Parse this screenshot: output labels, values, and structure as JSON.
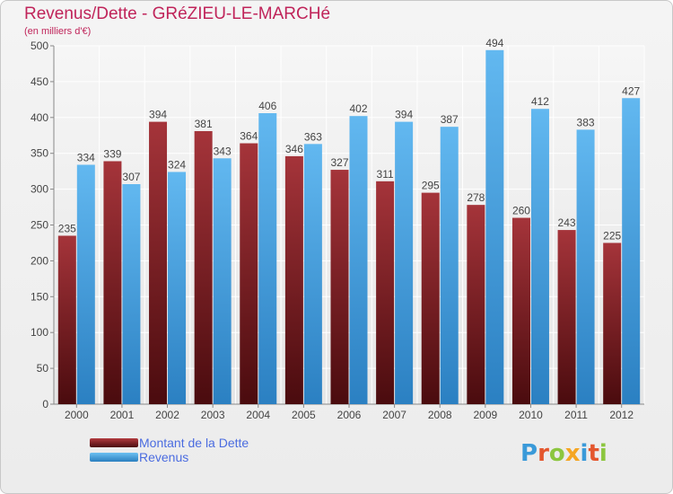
{
  "header": {
    "title": "Revenus/Dette - GRéZIEU-LE-MARCHé",
    "subtitle": "(en milliers d'€)"
  },
  "legend": {
    "items": [
      {
        "label": "Montant de la Dette",
        "color": "#7a1f22"
      },
      {
        "label": "Revenus",
        "color": "#3a9ad9"
      }
    ]
  },
  "logo": {
    "text": "Proxiti",
    "brand_colors": [
      "#3a9ad9",
      "#e4572e",
      "#8cc63f",
      "#f5a623"
    ]
  },
  "chart_data": {
    "type": "bar",
    "categories": [
      "2000",
      "2001",
      "2002",
      "2003",
      "2004",
      "2005",
      "2006",
      "2007",
      "2008",
      "2009",
      "2010",
      "2011",
      "2012"
    ],
    "series": [
      {
        "name": "Montant de la Dette",
        "color": "#7a1f22",
        "values": [
          235,
          339,
          394,
          381,
          364,
          346,
          327,
          311,
          295,
          278,
          260,
          243,
          225
        ]
      },
      {
        "name": "Revenus",
        "color": "#3a9ad9",
        "values": [
          334,
          307,
          324,
          343,
          406,
          363,
          402,
          394,
          387,
          494,
          412,
          383,
          427
        ]
      }
    ],
    "ylim": [
      0,
      500
    ],
    "yticks": [
      0,
      50,
      100,
      150,
      200,
      250,
      300,
      350,
      400,
      450,
      500
    ],
    "grid": true,
    "legend_position": "bottom-left",
    "data_labels": true
  }
}
